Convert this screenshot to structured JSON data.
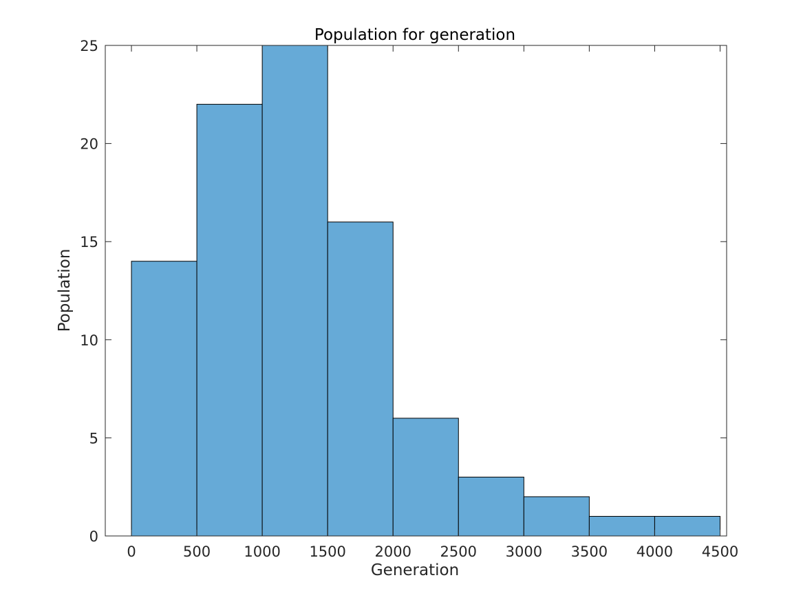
{
  "chart_data": {
    "type": "bar",
    "title": "Population for generation",
    "xlabel": "Generation",
    "ylabel": "Population",
    "bin_edges": [
      0,
      500,
      1000,
      1500,
      2000,
      2500,
      3000,
      3500,
      4000,
      4500
    ],
    "values": [
      14,
      22,
      25,
      16,
      6,
      3,
      2,
      1,
      1
    ],
    "xlim": [
      -200,
      4550
    ],
    "ylim": [
      0,
      25
    ],
    "xticks": [
      "0",
      "500",
      "1000",
      "1500",
      "2000",
      "2500",
      "3000",
      "3500",
      "4000",
      "4500"
    ],
    "yticks": [
      "0",
      "5",
      "10",
      "15",
      "20",
      "25"
    ],
    "grid": false,
    "legend": "none",
    "bar_color": "#66aad7",
    "edge_color": "#000000"
  }
}
